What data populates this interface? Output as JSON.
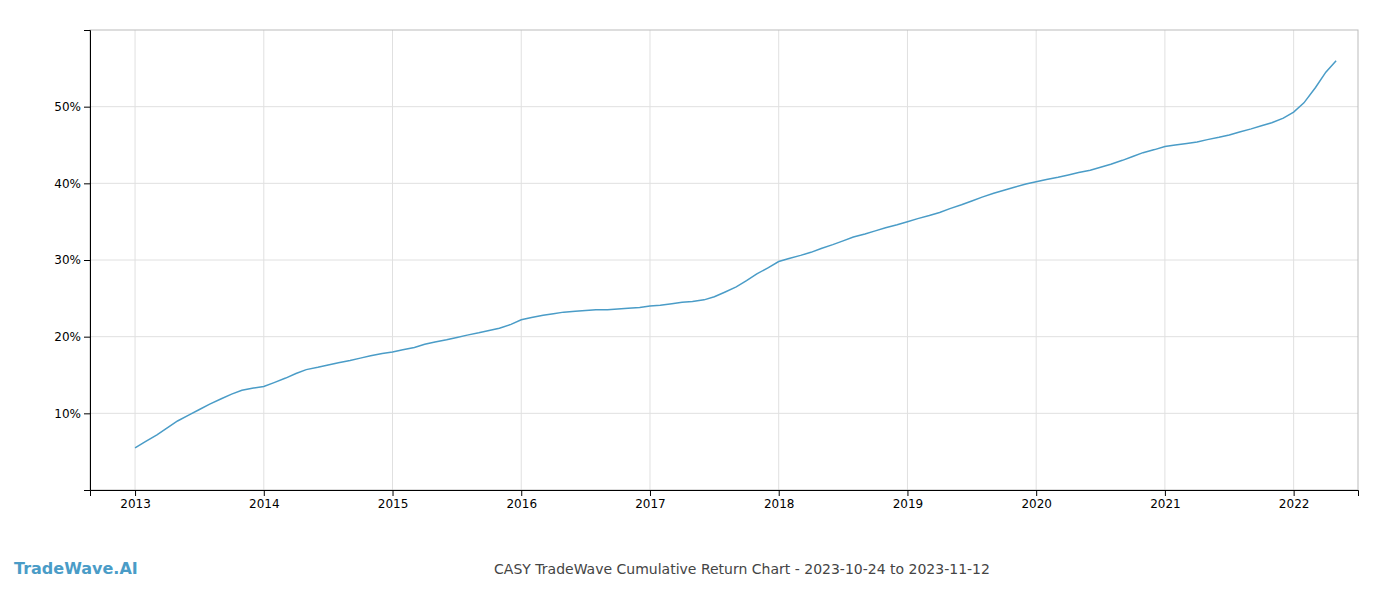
{
  "chart_data": {
    "type": "line",
    "title": "CASY TradeWave Cumulative Return Chart - 2023-10-24 to 2023-11-12",
    "annotations": [
      "TradeWave.AI"
    ],
    "color": "#4a9cc7",
    "grid": true,
    "x": [
      2013.0,
      2013.08,
      2013.17,
      2013.25,
      2013.33,
      2013.42,
      2013.5,
      2013.58,
      2013.67,
      2013.75,
      2013.83,
      2013.92,
      2014.0,
      2014.08,
      2014.17,
      2014.25,
      2014.33,
      2014.42,
      2014.5,
      2014.58,
      2014.67,
      2014.75,
      2014.83,
      2014.92,
      2015.0,
      2015.08,
      2015.17,
      2015.25,
      2015.33,
      2015.42,
      2015.5,
      2015.58,
      2015.67,
      2015.75,
      2015.83,
      2015.92,
      2016.0,
      2016.08,
      2016.17,
      2016.25,
      2016.33,
      2016.42,
      2016.5,
      2016.58,
      2016.67,
      2016.75,
      2016.83,
      2016.92,
      2017.0,
      2017.08,
      2017.17,
      2017.25,
      2017.33,
      2017.42,
      2017.5,
      2017.58,
      2017.67,
      2017.75,
      2017.83,
      2017.92,
      2018.0,
      2018.08,
      2018.17,
      2018.25,
      2018.33,
      2018.42,
      2018.5,
      2018.58,
      2018.67,
      2018.75,
      2018.83,
      2018.92,
      2019.0,
      2019.08,
      2019.17,
      2019.25,
      2019.33,
      2019.42,
      2019.5,
      2019.58,
      2019.67,
      2019.75,
      2019.83,
      2019.92,
      2020.0,
      2020.08,
      2020.17,
      2020.25,
      2020.33,
      2020.42,
      2020.5,
      2020.58,
      2020.67,
      2020.75,
      2020.83,
      2020.92,
      2021.0,
      2021.08,
      2021.17,
      2021.25,
      2021.33,
      2021.42,
      2021.5,
      2021.58,
      2021.67,
      2021.75,
      2021.83,
      2021.92,
      2022.0,
      2022.08,
      2022.17,
      2022.25,
      2022.33
    ],
    "values": [
      5.5,
      6.3,
      7.2,
      8.1,
      9.0,
      9.8,
      10.5,
      11.2,
      11.9,
      12.5,
      13.0,
      13.3,
      13.5,
      14.0,
      14.6,
      15.2,
      15.7,
      16.0,
      16.3,
      16.6,
      16.9,
      17.2,
      17.5,
      17.8,
      18.0,
      18.3,
      18.6,
      19.0,
      19.3,
      19.6,
      19.9,
      20.2,
      20.5,
      20.8,
      21.1,
      21.6,
      22.2,
      22.5,
      22.8,
      23.0,
      23.2,
      23.3,
      23.4,
      23.5,
      23.5,
      23.6,
      23.7,
      23.8,
      24.0,
      24.1,
      24.3,
      24.5,
      24.6,
      24.8,
      25.2,
      25.8,
      26.5,
      27.3,
      28.2,
      29.0,
      29.8,
      30.2,
      30.6,
      31.0,
      31.5,
      32.0,
      32.5,
      33.0,
      33.4,
      33.8,
      34.2,
      34.6,
      35.0,
      35.4,
      35.8,
      36.2,
      36.7,
      37.2,
      37.7,
      38.2,
      38.7,
      39.1,
      39.5,
      39.9,
      40.2,
      40.5,
      40.8,
      41.1,
      41.4,
      41.7,
      42.1,
      42.5,
      43.0,
      43.5,
      44.0,
      44.4,
      44.8,
      45.0,
      45.2,
      45.4,
      45.7,
      46.0,
      46.3,
      46.7,
      47.1,
      47.5,
      47.9,
      48.5,
      49.3,
      50.5,
      52.5,
      54.5,
      56.0
    ],
    "xlim": [
      2012.65,
      2022.5
    ],
    "xticks": [
      2013,
      2014,
      2015,
      2016,
      2017,
      2018,
      2019,
      2020,
      2021,
      2022
    ],
    "ylim": [
      0,
      60
    ],
    "yticks": [
      {
        "value": 10,
        "label": "10%"
      },
      {
        "value": 20,
        "label": "20%"
      },
      {
        "value": 30,
        "label": "30%"
      },
      {
        "value": 40,
        "label": "40%"
      },
      {
        "value": 50,
        "label": "50%"
      }
    ]
  }
}
